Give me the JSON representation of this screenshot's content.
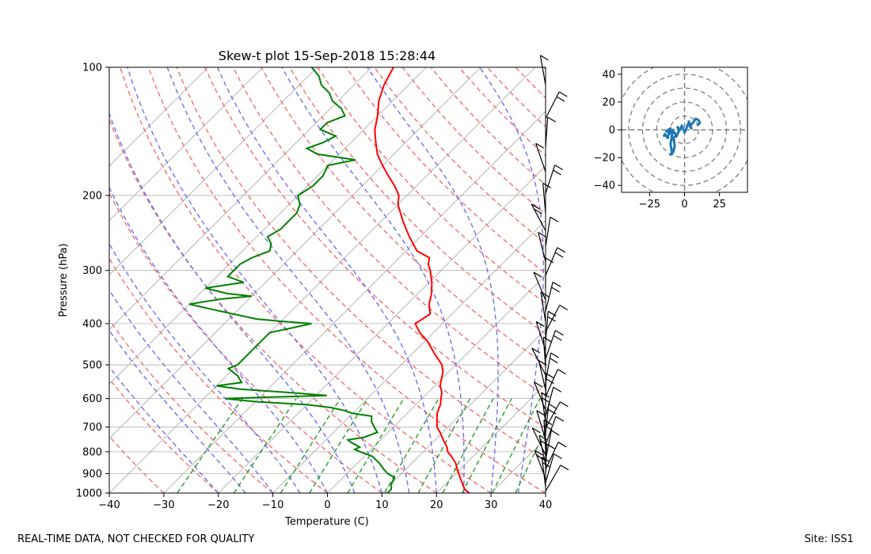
{
  "chart_data": [
    {
      "type": "skew-t",
      "title": "Skew-t plot 15-Sep-2018 15:28:44",
      "xlabel": "Temperature (C)",
      "ylabel": "Pressure (hPa)",
      "xlim": [
        -40,
        40
      ],
      "ylim": [
        1000,
        100
      ],
      "x_ticks": [
        -40,
        -30,
        -20,
        -10,
        0,
        10,
        20,
        30,
        40
      ],
      "p_ticks": [
        1000,
        900,
        800,
        700,
        600,
        500,
        400,
        300,
        200,
        100
      ],
      "temperature": {
        "name": "Temperature",
        "color": "#ff0000",
        "p": [
          1000,
          980,
          950,
          920,
          900,
          880,
          850,
          820,
          800,
          780,
          750,
          720,
          700,
          680,
          650,
          620,
          600,
          580,
          560,
          540,
          520,
          500,
          470,
          440,
          420,
          400,
          380,
          360,
          340,
          320,
          300,
          290,
          280,
          270,
          250,
          230,
          210,
          200,
          190,
          180,
          170,
          160,
          150,
          140,
          130,
          120,
          110,
          100
        ],
        "t": [
          26,
          24.5,
          23,
          21.5,
          20.5,
          19.5,
          18,
          16,
          14.5,
          13.5,
          11.5,
          9.5,
          8,
          7,
          5.5,
          4.5,
          3.5,
          2.5,
          1,
          0,
          -1,
          -2.5,
          -6,
          -9.5,
          -12.5,
          -15,
          -14,
          -16,
          -17.5,
          -19.5,
          -22,
          -23.5,
          -24.5,
          -28,
          -32,
          -36,
          -40,
          -41.5,
          -44,
          -47,
          -50,
          -53,
          -55.5,
          -58,
          -60,
          -62.5,
          -64.5,
          -66
        ]
      },
      "dewpoint": {
        "name": "Dewpoint",
        "color": "#008000",
        "p": [
          1000,
          980,
          950,
          920,
          900,
          880,
          850,
          820,
          800,
          790,
          780,
          760,
          750,
          740,
          720,
          700,
          680,
          660,
          650,
          640,
          630,
          620,
          610,
          600,
          595,
          590,
          580,
          570,
          560,
          550,
          530,
          510,
          500,
          480,
          460,
          440,
          420,
          410,
          400,
          395,
          390,
          380,
          370,
          360,
          350,
          345,
          340,
          330,
          320,
          310,
          300,
          290,
          280,
          270,
          260,
          250,
          240,
          230,
          220,
          210,
          200,
          190,
          180,
          170,
          165,
          160,
          155,
          150,
          145,
          140,
          135,
          130,
          125,
          120,
          115,
          110,
          105,
          100
        ],
        "td": [
          11,
          11,
          10,
          9.5,
          7.5,
          6,
          4,
          1.5,
          -1.5,
          -3,
          -2.5,
          -5,
          -6,
          -3.5,
          -2,
          -3.5,
          -5,
          -6,
          -10,
          -12,
          -15,
          -20,
          -30,
          -36,
          -28,
          -18,
          -26,
          -35,
          -40,
          -36,
          -38,
          -41,
          -40,
          -40,
          -40,
          -40,
          -40,
          -37,
          -34,
          -40,
          -45,
          -50,
          -55,
          -60,
          -55,
          -50,
          -55,
          -60,
          -54,
          -58,
          -58,
          -58,
          -57,
          -55,
          -56,
          -58,
          -57,
          -57,
          -57,
          -58,
          -60,
          -59,
          -59,
          -60,
          -56,
          -64,
          -67,
          -65,
          -64,
          -68,
          -68,
          -66,
          -68,
          -71,
          -73,
          -76,
          -78,
          -81
        ]
      },
      "legend": "none"
    },
    {
      "type": "hodograph",
      "xlim": [
        -45,
        45
      ],
      "ylim": [
        -45,
        45
      ],
      "x_ticks": [
        -25,
        0,
        25
      ],
      "y_ticks": [
        -40,
        -20,
        0,
        20,
        40
      ],
      "rings": [
        10,
        20,
        30,
        40,
        50
      ],
      "color": "#1f77b4",
      "u": [
        -15,
        -14,
        -12,
        -11,
        -13,
        -10,
        -11,
        -8,
        -9,
        -10,
        -9,
        -10,
        -8,
        -7,
        -8,
        -6,
        -7,
        -6,
        -4,
        -5,
        -3,
        -2,
        -1,
        0,
        1,
        2,
        3,
        4,
        5,
        4,
        3,
        4,
        6,
        8,
        10,
        11,
        9
      ],
      "v": [
        -5,
        -3,
        -6,
        -2,
        -1,
        1,
        -3,
        0,
        -4,
        -10,
        -17,
        -18,
        -16,
        -11,
        -6,
        -4,
        -2,
        -5,
        -1,
        2,
        0,
        3,
        1,
        -2,
        0,
        3,
        5,
        2,
        1,
        4,
        6,
        3,
        5,
        8,
        7,
        5,
        3
      ]
    }
  ],
  "footer": {
    "left": "REAL-TIME DATA, NOT CHECKED FOR QUALITY",
    "right": "Site: ISS1"
  }
}
